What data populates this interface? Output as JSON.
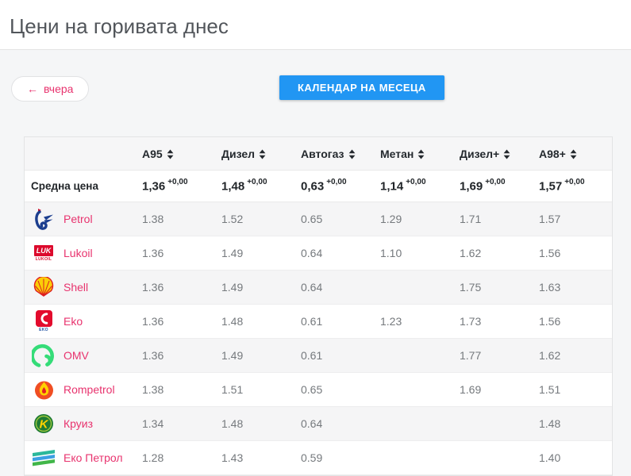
{
  "page": {
    "title": "Цени на горивата днес"
  },
  "toolbar": {
    "yesterday_arrow": "←",
    "yesterday_label": "вчера",
    "calendar_label": "КАЛЕНДАР НА МЕСЕЦА"
  },
  "table": {
    "columns": [
      {
        "key": "a95",
        "label": "A95"
      },
      {
        "key": "diesel",
        "label": "Дизел"
      },
      {
        "key": "autogas",
        "label": "Автогаз"
      },
      {
        "key": "methane",
        "label": "Метан"
      },
      {
        "key": "diesel-plus",
        "label": "Дизел+"
      },
      {
        "key": "a98-plus",
        "label": "A98+"
      }
    ],
    "average_row": {
      "label": "Средна цена",
      "values": [
        "1,36",
        "1,48",
        "0,63",
        "1,14",
        "1,69",
        "1,57"
      ],
      "deltas": [
        "+0,00",
        "+0,00",
        "+0,00",
        "+0,00",
        "+0,00",
        "+0,00"
      ]
    },
    "rows": [
      {
        "brand": "Petrol",
        "logo": "petrol-logo",
        "values": [
          "1.38",
          "1.52",
          "0.65",
          "1.29",
          "1.71",
          "1.57"
        ]
      },
      {
        "brand": "Lukoil",
        "logo": "lukoil-logo",
        "values": [
          "1.36",
          "1.49",
          "0.64",
          "1.10",
          "1.62",
          "1.56"
        ]
      },
      {
        "brand": "Shell",
        "logo": "shell-logo",
        "values": [
          "1.36",
          "1.49",
          "0.64",
          "",
          "1.75",
          "1.63"
        ]
      },
      {
        "brand": "Eko",
        "logo": "eko-logo",
        "values": [
          "1.36",
          "1.48",
          "0.61",
          "1.23",
          "1.73",
          "1.56"
        ]
      },
      {
        "brand": "OMV",
        "logo": "omv-logo",
        "values": [
          "1.36",
          "1.49",
          "0.61",
          "",
          "1.77",
          "1.62"
        ]
      },
      {
        "brand": "Rompetrol",
        "logo": "rompetrol-logo",
        "values": [
          "1.38",
          "1.51",
          "0.65",
          "",
          "1.69",
          "1.51"
        ]
      },
      {
        "brand": "Круиз",
        "logo": "kruiz-logo",
        "values": [
          "1.34",
          "1.48",
          "0.64",
          "",
          "",
          "1.48"
        ]
      },
      {
        "brand": "Еко Петрол",
        "logo": "eko-petrol-logo",
        "values": [
          "1.28",
          "1.43",
          "0.59",
          "",
          "",
          "1.40"
        ]
      }
    ]
  },
  "colors": {
    "accent_pink": "#e8336e",
    "button_blue": "#2196f3",
    "header_text": "#24292e",
    "value_text": "#75797d",
    "stripe_gray": "#f5f5f6",
    "page_bg": "#f5f6f7"
  }
}
